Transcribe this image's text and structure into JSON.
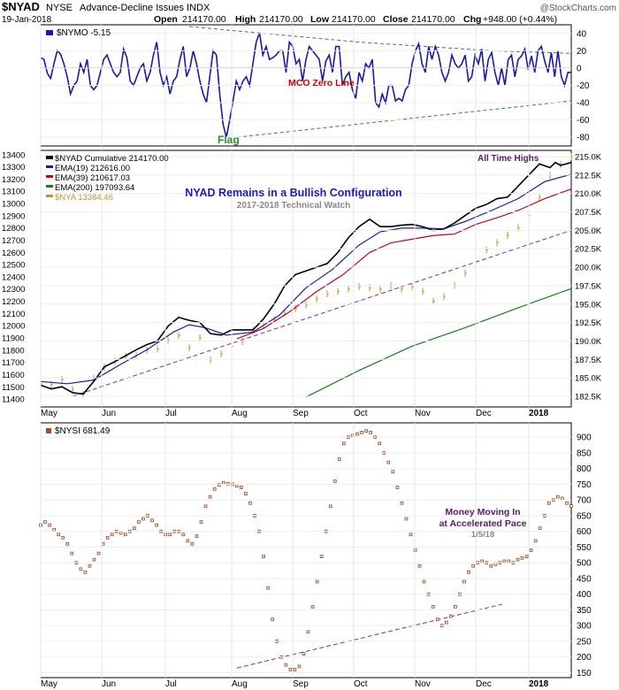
{
  "header": {
    "symbol": "$NYAD",
    "exchange": "NYSE",
    "description": "Advance-Decline Issues INDX",
    "date": "19-Jan-2018",
    "open_label": "Open",
    "open": "214170.00",
    "high_label": "High",
    "high": "214170.00",
    "low_label": "Low",
    "low": "214170.00",
    "close_label": "Close",
    "close": "214170.00",
    "chg_label": "Chg",
    "chg": "+948.00 (+0.44%)",
    "watermark": "@StockCharts.com"
  },
  "months": [
    "May",
    "Jun",
    "Jul",
    "Aug",
    "Sep",
    "Oct",
    "Nov",
    "Dec",
    "2018"
  ],
  "colors": {
    "nymo": "#1a1aa6",
    "zero": "#cc0000",
    "trend": "#2e8b2e",
    "nyad": "#000000",
    "ema19": "#1a1aa6",
    "ema39": "#cc0022",
    "ema200": "#1e7a1e",
    "nya": "#b89a2a",
    "purple": "#8a2a9a",
    "nysi": "#a0522d",
    "title_blue": "#1a1acc",
    "label_purple": "#5a1a6a"
  },
  "chart_data": [
    {
      "type": "line",
      "panel": "NYMO",
      "series": [
        {
          "name": "$NYMO -5.15"
        }
      ],
      "last_value": -5.15,
      "ylim": [
        -88,
        48
      ],
      "yticks": [
        "40",
        "20",
        "0",
        "-20",
        "-40",
        "-60",
        "-80"
      ],
      "zero_line_label": "MCO Zero Line",
      "annotation": "Flag",
      "upper_trend": [
        [
          0.28,
          48
        ],
        [
          0.6,
          30
        ],
        [
          0.85,
          20
        ],
        [
          1.0,
          17
        ]
      ],
      "lower_trend": [
        [
          0.37,
          -80
        ],
        [
          0.7,
          -58
        ],
        [
          1.0,
          -38
        ]
      ],
      "values": [
        12,
        10,
        -6,
        -12,
        5,
        20,
        16,
        5,
        -10,
        -30,
        -20,
        -15,
        5,
        -5,
        10,
        -20,
        -25,
        -20,
        -5,
        10,
        15,
        5,
        -5,
        -10,
        -5,
        22,
        12,
        -15,
        -20,
        -10,
        0,
        5,
        -15,
        -5,
        15,
        30,
        -5,
        -20,
        -10,
        -30,
        -15,
        -10,
        10,
        25,
        -10,
        0,
        20,
        5,
        -15,
        -30,
        -40,
        -10,
        20,
        15,
        -30,
        -65,
        -80,
        -60,
        -38,
        -15,
        -25,
        -15,
        -10,
        -20,
        5,
        30,
        41,
        15,
        25,
        10,
        12,
        15,
        20,
        20,
        -5,
        30,
        25,
        5,
        10,
        -15,
        10,
        25,
        20,
        15,
        10,
        -15,
        8,
        15,
        -5,
        25,
        25,
        -20,
        -10,
        -5,
        -25,
        -35,
        -5,
        -15,
        5,
        0,
        10,
        -40,
        -45,
        -30,
        -40,
        -20,
        -20,
        -38,
        -35,
        -38,
        -25,
        -20,
        5,
        20,
        28,
        5,
        -5,
        25,
        10,
        25,
        15,
        -5,
        -15,
        -5,
        15,
        5,
        0,
        5,
        15,
        -15,
        -10,
        15,
        5,
        22,
        -15,
        10,
        18,
        -5,
        -20,
        0,
        -20,
        10,
        15,
        -10,
        10,
        14,
        22,
        -2,
        14,
        -5,
        20,
        25,
        8,
        -5,
        18,
        -10,
        20,
        -10,
        -20,
        -5,
        -5
      ],
      "source": "NYMO"
    },
    {
      "type": "line",
      "panel": "NYAD",
      "title": "NYAD Remains in a Bullish Configuration",
      "subtitle": "2017-2018 Technical Watch",
      "annotation": "All Time Highs",
      "ylim": [
        11350,
        13420
      ],
      "yticks_left": [
        "13400",
        "13300",
        "13200",
        "13100",
        "13000",
        "12900",
        "12800",
        "12700",
        "12600",
        "12500",
        "12400",
        "12300",
        "12200",
        "12100",
        "12000",
        "11900",
        "11800",
        "11700",
        "11600",
        "11500",
        "11400"
      ],
      "yticks_right": [
        "215.0K",
        "212.5K",
        "210.0K",
        "207.5K",
        "205.0K",
        "202.5K",
        "200.0K",
        "197.5K",
        "195.0K",
        "192.5K",
        "190.0K",
        "187.5K",
        "185.0K",
        "182.5K"
      ],
      "legend": [
        {
          "label": "$NYAD Cumulative 214170.00",
          "color": "#000000"
        },
        {
          "label": "EMA(19) 212616.00",
          "color": "#1a1aa6"
        },
        {
          "label": "EMA(39) 210617.03",
          "color": "#cc0022"
        },
        {
          "label": "EMA(200) 197093.64",
          "color": "#1e7a1e"
        },
        {
          "label": "$NYA 13384.46",
          "color": "#b89a2a"
        }
      ],
      "series_keys": [
        "nyad",
        "ema19",
        "ema39",
        "ema200",
        "nya"
      ],
      "nyad": [
        [
          0,
          184.0
        ],
        [
          0.02,
          183.5
        ],
        [
          0.04,
          183.8
        ],
        [
          0.06,
          183.0
        ],
        [
          0.08,
          182.8
        ],
        [
          0.1,
          184.5
        ],
        [
          0.12,
          186.5
        ],
        [
          0.14,
          187.2
        ],
        [
          0.16,
          188.0
        ],
        [
          0.18,
          188.8
        ],
        [
          0.2,
          189.5
        ],
        [
          0.22,
          190.0
        ],
        [
          0.24,
          192.0
        ],
        [
          0.26,
          193.2
        ],
        [
          0.28,
          192.8
        ],
        [
          0.3,
          192.5
        ],
        [
          0.32,
          191.0
        ],
        [
          0.34,
          190.8
        ],
        [
          0.36,
          191.5
        ],
        [
          0.38,
          191.5
        ],
        [
          0.4,
          191.5
        ],
        [
          0.42,
          193.0
        ],
        [
          0.44,
          195.0
        ],
        [
          0.46,
          197.5
        ],
        [
          0.48,
          199.0
        ],
        [
          0.5,
          199.5
        ],
        [
          0.52,
          200.0
        ],
        [
          0.54,
          200.5
        ],
        [
          0.56,
          202.0
        ],
        [
          0.58,
          204.0
        ],
        [
          0.6,
          205.5
        ],
        [
          0.62,
          206.5
        ],
        [
          0.64,
          205.5
        ],
        [
          0.66,
          205.5
        ],
        [
          0.68,
          205.7
        ],
        [
          0.7,
          205.8
        ],
        [
          0.72,
          205.5
        ],
        [
          0.74,
          205.0
        ],
        [
          0.76,
          205.2
        ],
        [
          0.78,
          206.0
        ],
        [
          0.8,
          207.0
        ],
        [
          0.82,
          208.0
        ],
        [
          0.84,
          208.5
        ],
        [
          0.86,
          209.3
        ],
        [
          0.88,
          209.5
        ],
        [
          0.9,
          211.0
        ],
        [
          0.92,
          212.5
        ],
        [
          0.94,
          214.0
        ],
        [
          0.96,
          213.5
        ],
        [
          0.97,
          214.2
        ],
        [
          0.98,
          213.8
        ],
        [
          1.0,
          214.2
        ]
      ],
      "ema19": [
        [
          0,
          184.5
        ],
        [
          0.05,
          184.2
        ],
        [
          0.1,
          184.7
        ],
        [
          0.15,
          186.8
        ],
        [
          0.2,
          188.8
        ],
        [
          0.25,
          191.2
        ],
        [
          0.28,
          192.2
        ],
        [
          0.31,
          191.8
        ],
        [
          0.35,
          190.8
        ],
        [
          0.4,
          191.2
        ],
        [
          0.45,
          193.5
        ],
        [
          0.5,
          197.2
        ],
        [
          0.55,
          199.7
        ],
        [
          0.6,
          203.0
        ],
        [
          0.64,
          204.8
        ],
        [
          0.68,
          205.3
        ],
        [
          0.72,
          205.3
        ],
        [
          0.76,
          205.2
        ],
        [
          0.8,
          206.2
        ],
        [
          0.85,
          207.7
        ],
        [
          0.9,
          209.3
        ],
        [
          0.95,
          211.6
        ],
        [
          1.0,
          212.6
        ]
      ],
      "ema39": [
        [
          0.37,
          190.3
        ],
        [
          0.42,
          191.7
        ],
        [
          0.47,
          194.0
        ],
        [
          0.52,
          196.7
        ],
        [
          0.57,
          199.0
        ],
        [
          0.62,
          202.0
        ],
        [
          0.66,
          203.3
        ],
        [
          0.7,
          203.8
        ],
        [
          0.74,
          204.3
        ],
        [
          0.78,
          204.5
        ],
        [
          0.82,
          205.8
        ],
        [
          0.86,
          206.7
        ],
        [
          0.9,
          207.7
        ],
        [
          0.95,
          209.3
        ],
        [
          1.0,
          210.6
        ]
      ],
      "ema200": [
        [
          0.5,
          182.4
        ],
        [
          0.6,
          186.0
        ],
        [
          0.7,
          189.3
        ],
        [
          0.8,
          191.8
        ],
        [
          0.9,
          194.5
        ],
        [
          1.0,
          197.1
        ]
      ],
      "nya": [
        [
          0,
          11525
        ],
        [
          0.02,
          11520
        ],
        [
          0.04,
          11560
        ],
        [
          0.06,
          11480
        ],
        [
          0.08,
          11440
        ],
        [
          0.1,
          11570
        ],
        [
          0.12,
          11660
        ],
        [
          0.14,
          11710
        ],
        [
          0.16,
          11750
        ],
        [
          0.18,
          11760
        ],
        [
          0.2,
          11800
        ],
        [
          0.22,
          11810
        ],
        [
          0.24,
          11880
        ],
        [
          0.26,
          11920
        ],
        [
          0.28,
          11820
        ],
        [
          0.3,
          11900
        ],
        [
          0.32,
          11720
        ],
        [
          0.34,
          11770
        ],
        [
          0.36,
          11830
        ],
        [
          0.38,
          11870
        ],
        [
          0.4,
          11960
        ],
        [
          0.42,
          12010
        ],
        [
          0.44,
          12050
        ],
        [
          0.46,
          12100
        ],
        [
          0.48,
          12140
        ],
        [
          0.5,
          12170
        ],
        [
          0.52,
          12220
        ],
        [
          0.54,
          12260
        ],
        [
          0.56,
          12280
        ],
        [
          0.58,
          12300
        ],
        [
          0.6,
          12320
        ],
        [
          0.62,
          12310
        ],
        [
          0.64,
          12300
        ],
        [
          0.66,
          12330
        ],
        [
          0.68,
          12300
        ],
        [
          0.7,
          12320
        ],
        [
          0.72,
          12280
        ],
        [
          0.74,
          12200
        ],
        [
          0.76,
          12240
        ],
        [
          0.78,
          12330
        ],
        [
          0.8,
          12430
        ],
        [
          0.82,
          12530
        ],
        [
          0.84,
          12620
        ],
        [
          0.86,
          12680
        ],
        [
          0.88,
          12740
        ],
        [
          0.9,
          12800
        ],
        [
          0.92,
          12900
        ],
        [
          0.94,
          13050
        ],
        [
          0.96,
          13230
        ],
        [
          0.98,
          13320
        ],
        [
          1.0,
          13384
        ]
      ],
      "purple_trend": [
        [
          0.06,
          182.5
        ],
        [
          1.0,
          205.0
        ]
      ]
    },
    {
      "type": "scatter",
      "panel": "NYSI",
      "series": [
        {
          "name": "$NYSI 681.49"
        }
      ],
      "last_value": 681.49,
      "ylim": [
        140,
        940
      ],
      "yticks": [
        "900",
        "850",
        "800",
        "750",
        "700",
        "650",
        "600",
        "550",
        "500",
        "450",
        "400",
        "350",
        "300",
        "250",
        "200",
        "150"
      ],
      "annotation": [
        "Money Moving In",
        "at Accelerated Pace",
        "1/5/18"
      ],
      "trend": [
        [
          0.37,
          165
        ],
        [
          0.87,
          368
        ]
      ],
      "values": [
        620,
        630,
        620,
        605,
        590,
        580,
        560,
        530,
        500,
        480,
        470,
        490,
        510,
        530,
        560,
        580,
        590,
        600,
        595,
        590,
        600,
        610,
        630,
        640,
        650,
        635,
        620,
        600,
        590,
        590,
        600,
        600,
        590,
        570,
        560,
        585,
        630,
        680,
        710,
        735,
        748,
        755,
        752,
        750,
        745,
        740,
        720,
        690,
        650,
        600,
        520,
        420,
        320,
        250,
        200,
        175,
        160,
        160,
        170,
        210,
        280,
        360,
        440,
        520,
        600,
        680,
        760,
        830,
        880,
        900,
        905,
        910,
        915,
        920,
        915,
        900,
        880,
        850,
        820,
        790,
        740,
        690,
        640,
        590,
        540,
        490,
        440,
        400,
        360,
        320,
        300,
        310,
        330,
        360,
        400,
        440,
        470,
        490,
        500,
        505,
        500,
        490,
        495,
        500,
        505,
        505,
        500,
        510,
        515,
        520,
        540,
        570,
        610,
        650,
        690,
        700,
        710,
        705,
        690,
        681
      ]
    }
  ]
}
